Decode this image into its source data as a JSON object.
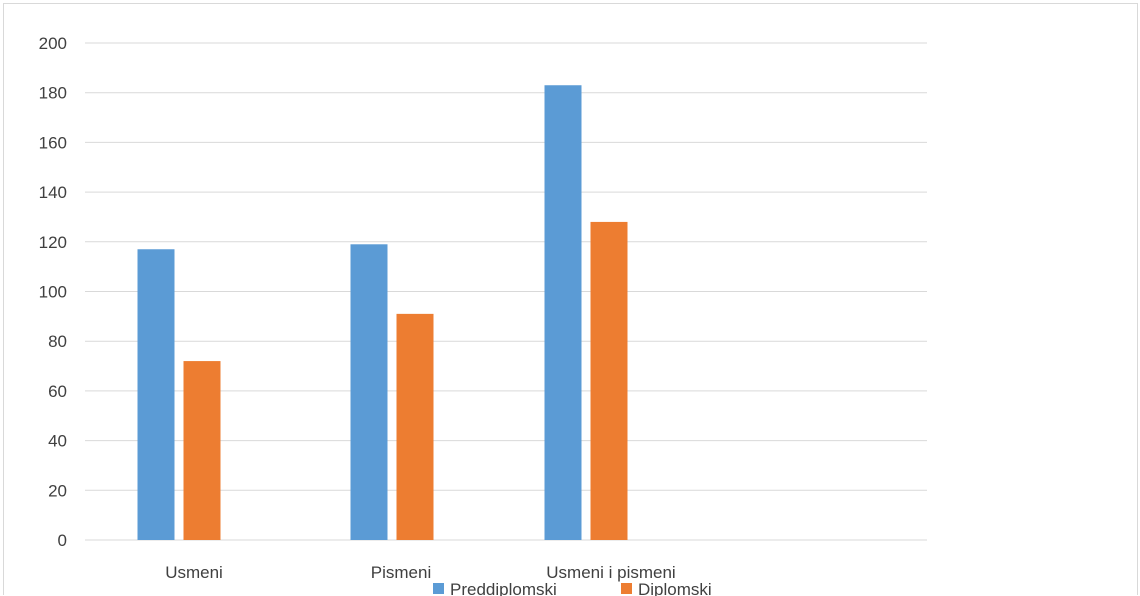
{
  "chart_data": {
    "type": "bar",
    "categories": [
      "Usmeni",
      "Pismeni",
      "Usmeni i pismeni"
    ],
    "series": [
      {
        "name": "Preddiplomski",
        "color": "#5b9bd5",
        "values": [
          117,
          119,
          183
        ]
      },
      {
        "name": "Diplomski",
        "color": "#ed7d31",
        "values": [
          72,
          91,
          128
        ]
      }
    ],
    "yticks": [
      "0",
      "20",
      "40",
      "60",
      "80",
      "100",
      "120",
      "140",
      "160",
      "180",
      "200"
    ],
    "ylim": [
      0,
      200
    ],
    "grid": true,
    "legend": "bottom",
    "title": "",
    "xlabel": "",
    "ylabel": ""
  }
}
